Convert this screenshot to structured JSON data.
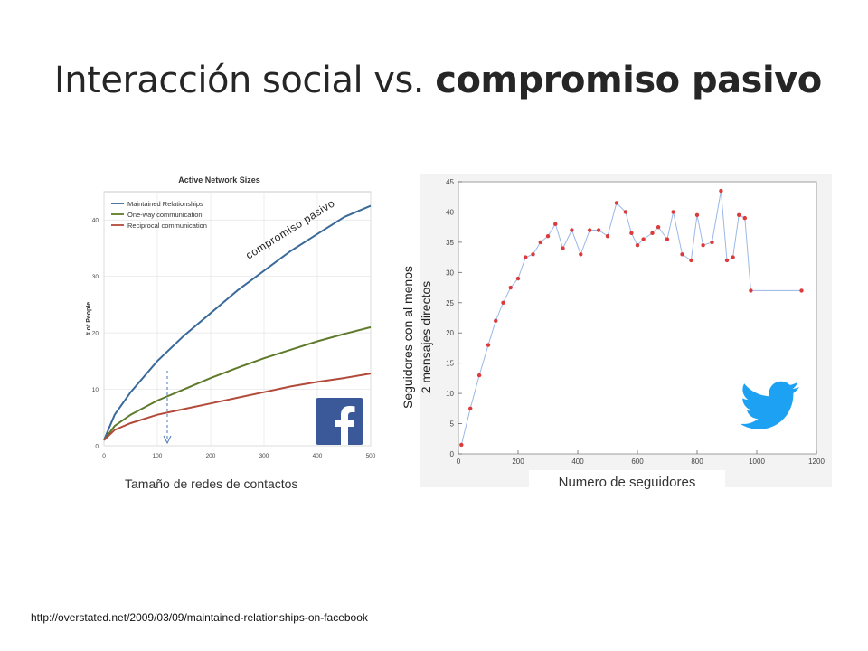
{
  "slide": {
    "title_regular": "Interacción social vs. ",
    "title_bold": "compromiso pasivo",
    "source_url": "http://overstated.net/2009/03/09/maintained-relationships-on-facebook"
  },
  "colors": {
    "maintained": "#3a6a9a",
    "one_way": "#5f7a2a",
    "reciprocal": "#b24a3a",
    "twitter_line": "#9bb7e8",
    "twitter_points": "#dd3b3b",
    "facebook_blue": "#3b5998",
    "twitter_blue": "#1da1f2"
  },
  "icons": {
    "facebook": "facebook-logo-icon",
    "twitter": "twitter-bird-icon"
  },
  "chart_data": [
    {
      "type": "line",
      "title": "Active Network Sizes",
      "ylabel": "# of People",
      "xlabel": "Tamaño de redes de contactos",
      "xlim": [
        0,
        500
      ],
      "ylim": [
        0,
        45
      ],
      "xticks": [
        0,
        100,
        200,
        300,
        400,
        500
      ],
      "yticks": [
        0,
        10,
        20,
        30,
        40
      ],
      "grid": true,
      "legend": "top-left",
      "annotation": "compromiso pasivo",
      "series": [
        {
          "name": "Maintained Relationships",
          "x": [
            0,
            20,
            50,
            100,
            150,
            200,
            250,
            300,
            350,
            400,
            450,
            500
          ],
          "y": [
            1,
            5.5,
            9.5,
            15,
            19.5,
            23.5,
            27.5,
            31,
            34.5,
            37.5,
            40.5,
            42.5
          ]
        },
        {
          "name": "One-way communication",
          "x": [
            0,
            20,
            50,
            100,
            150,
            200,
            250,
            300,
            350,
            400,
            450,
            500
          ],
          "y": [
            1,
            3.5,
            5.5,
            8,
            10,
            12,
            13.8,
            15.5,
            17,
            18.5,
            19.8,
            21
          ]
        },
        {
          "name": "Reciprocal communication",
          "x": [
            0,
            20,
            50,
            100,
            150,
            200,
            250,
            300,
            350,
            400,
            450,
            500
          ],
          "y": [
            1,
            2.8,
            4,
            5.5,
            6.5,
            7.5,
            8.5,
            9.5,
            10.5,
            11.3,
            12,
            12.8
          ]
        }
      ]
    },
    {
      "type": "line",
      "xlabel": "Numero de seguidores",
      "ylabel": "Seguidores con al menos 2 mensajes directos",
      "xlim": [
        0,
        1200
      ],
      "ylim": [
        0,
        45
      ],
      "xticks": [
        0,
        200,
        400,
        600,
        800,
        1000,
        1200
      ],
      "yticks": [
        0,
        5,
        10,
        15,
        20,
        25,
        30,
        35,
        40,
        45
      ],
      "series": [
        {
          "x": [
            10,
            40,
            70,
            100,
            125,
            150,
            175,
            200,
            225,
            250,
            275,
            300,
            325,
            350,
            380,
            410,
            440,
            470,
            500,
            530,
            560,
            580,
            600,
            620,
            650,
            670,
            700,
            720,
            750,
            780,
            800,
            820,
            850,
            880,
            900,
            920,
            940,
            960,
            980,
            1000,
            1020,
            1050,
            1080,
            1100,
            1130,
            1150
          ],
          "y": [
            1.5,
            7.5,
            13,
            18,
            22,
            25,
            27.5,
            29,
            32.5,
            33,
            35,
            36,
            38,
            34,
            37,
            33,
            37,
            37,
            36,
            41.5,
            40,
            36.5,
            34.5,
            35.5,
            36.5,
            37.5,
            35.5,
            40,
            33,
            32,
            39.5,
            34.5,
            35,
            43.5,
            32,
            32.5,
            39.5,
            39,
            27,
            27,
            27,
            27,
            27,
            27,
            27,
            27
          ]
        }
      ]
    }
  ]
}
